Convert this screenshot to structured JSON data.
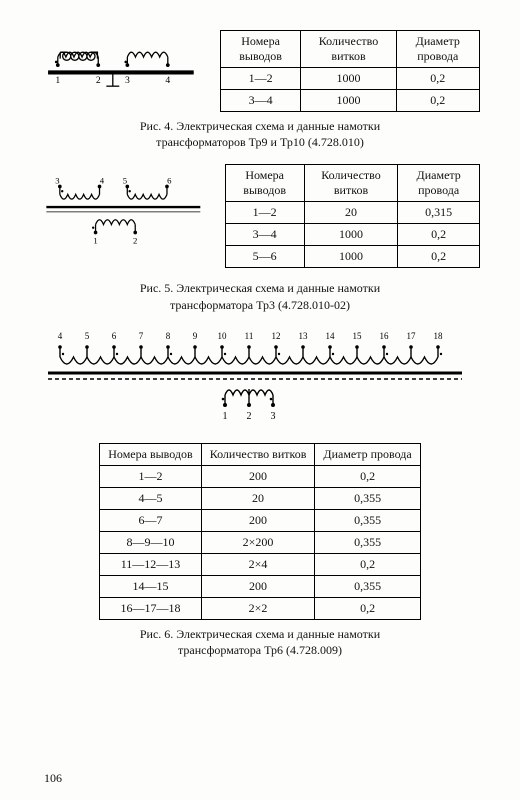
{
  "fig4": {
    "headers": [
      "Номера выводов",
      "Количество витков",
      "Диаметр провода"
    ],
    "rows": [
      [
        "1—2",
        "1000",
        "0,2"
      ],
      [
        "3—4",
        "1000",
        "0,2"
      ]
    ],
    "caption_l1": "Рис. 4. Электрическая схема и данные намотки",
    "caption_l2": "трансформаторов Тр9 и Тр10 (4.728.010)",
    "pins": [
      "1",
      "2",
      "3",
      "4"
    ]
  },
  "fig5": {
    "headers": [
      "Номера выводов",
      "Количество витков",
      "Диаметр провода"
    ],
    "rows": [
      [
        "1—2",
        "20",
        "0,315"
      ],
      [
        "3—4",
        "1000",
        "0,2"
      ],
      [
        "5—6",
        "1000",
        "0,2"
      ]
    ],
    "caption_l1": "Рис. 5. Электрическая схема и данные намотки",
    "caption_l2": "трансформатора Тр3 (4.728.010-02)",
    "pins_top": [
      "3",
      "4",
      "5",
      "6"
    ],
    "pins_bot": [
      "1",
      "2"
    ]
  },
  "fig6": {
    "headers": [
      "Номера выводов",
      "Количество витков",
      "Диаметр провода"
    ],
    "rows": [
      [
        "1—2",
        "200",
        "0,2"
      ],
      [
        "4—5",
        "20",
        "0,355"
      ],
      [
        "6—7",
        "200",
        "0,355"
      ],
      [
        "8—9—10",
        "2×200",
        "0,355"
      ],
      [
        "11—12—13",
        "2×4",
        "0,2"
      ],
      [
        "14—15",
        "200",
        "0,355"
      ],
      [
        "16—17—18",
        "2×2",
        "0,2"
      ]
    ],
    "caption_l1": "Рис. 6. Электрическая схема и данные намотки",
    "caption_l2": "трансформатора Тр6 (4.728.009)",
    "pins_top": [
      "4",
      "5",
      "6",
      "7",
      "8",
      "9",
      "10",
      "11",
      "12",
      "13",
      "14",
      "15",
      "16",
      "17",
      "18"
    ],
    "pins_bot": [
      "1",
      "2",
      "3"
    ]
  },
  "page_number": "106",
  "colors": {
    "ink": "#000000",
    "paper": "#fdfdfb"
  }
}
